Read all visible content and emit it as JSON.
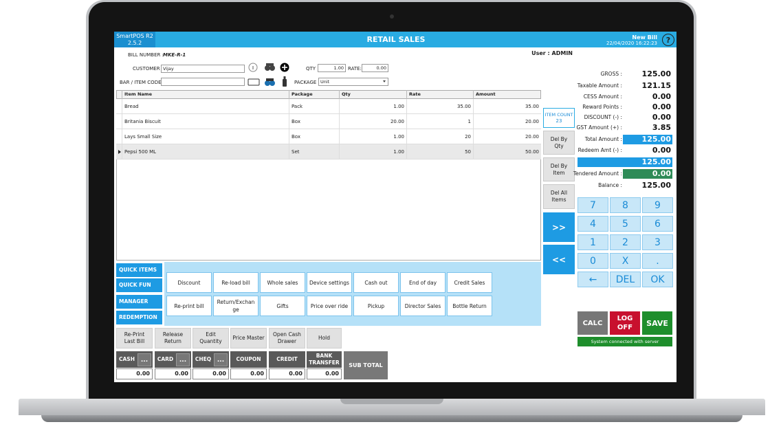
{
  "header": {
    "app_name": "SmartPOS R2",
    "version": "2.5.2",
    "title": "RETAIL SALES",
    "bill_status": "New Bill",
    "datetime": "22/04/2020 16:22:23",
    "help": "?"
  },
  "form": {
    "bill_number_label": "BILL NUMBER :",
    "bill_number": "MKE-R-1",
    "user": "User : ADMIN",
    "customer_label": "CUSTOMER :",
    "customer": "Vijay",
    "qty_label": "QTY :",
    "qty": "1.00",
    "rate_label": "RATE:",
    "rate": "0.00",
    "item_code_label": "BAR / ITEM CODE :",
    "package_label": "PACKAGE :",
    "package": "Unit"
  },
  "table": {
    "columns": [
      "Item Name",
      "Package",
      "Qty",
      "Rate",
      "Amount"
    ],
    "rows": [
      [
        "Bread",
        "Pack",
        "1.00",
        "35.00",
        "35.00"
      ],
      [
        "Britania Biscuit",
        "Box",
        "20.00",
        "1",
        "20.00"
      ],
      [
        "Lays Small Size",
        "Box",
        "1.00",
        "20",
        "20.00"
      ],
      [
        "Pepsi 500 ML",
        "Set",
        "1.00",
        "50",
        "50.00"
      ]
    ]
  },
  "side": {
    "item_count_label": "ITEM COUNT",
    "item_count": "23",
    "buttons": [
      "Del By Qty",
      "Del By Item",
      "Del All Items"
    ],
    "next": ">>",
    "prev": "<<"
  },
  "summary": [
    {
      "label": "GROSS :",
      "value": "125.00"
    },
    {
      "label": "Taxable Amount :",
      "value": "121.15"
    },
    {
      "label": "CESS Amount :",
      "value": "0.00"
    },
    {
      "label": "Reward Points :",
      "value": "0.00"
    },
    {
      "label": "DISCOUNT  (-) :",
      "value": "0.00"
    },
    {
      "label": "GST Amount (+) :",
      "value": "3.85"
    },
    {
      "label": "Total Amount :",
      "value": "125.00"
    },
    {
      "label": "Redeem Amt  (-) :",
      "value": "0.00"
    },
    {
      "value": "125.00"
    },
    {
      "label": "Tendered Amount :",
      "value": "0.00"
    },
    {
      "label": "Balance :",
      "value": "125.00"
    }
  ],
  "keypad": [
    "7",
    "8",
    "9",
    "4",
    "5",
    "6",
    "1",
    "2",
    "3",
    "0",
    "X",
    ".",
    "←",
    "DEL",
    "OK"
  ],
  "actions": {
    "calc": "CALC",
    "logoff": "LOG OFF",
    "save": "SAVE",
    "status": "System connected with server"
  },
  "tabs": [
    "QUICK ITEMS",
    "QUICK FUN",
    "MANAGER",
    "REDEMPTION"
  ],
  "quick_buttons": [
    "Discount",
    "Re-load bill",
    "Whole sales",
    "Device settings",
    "Cash out",
    "End of day",
    "Credit Sales",
    "Re-print bill",
    "Return/Exchange",
    "Gifts",
    "Price over ride",
    "Pickup",
    "Director Sales",
    "Bottle Return"
  ],
  "bottom_buttons": [
    "Re-Print Last Bill",
    "Release Return",
    "Edit Quantity",
    "Price Master",
    "Open Cash Drawer",
    "Hold"
  ],
  "payments": [
    {
      "label": "CASH",
      "more": "...",
      "amount": "0.00"
    },
    {
      "label": "CARD",
      "more": "...",
      "amount": "0.00"
    },
    {
      "label": "CHEQ",
      "more": "...",
      "amount": "0.00"
    },
    {
      "label": "COUPON",
      "amount": "0.00"
    },
    {
      "label": "CREDIT",
      "amount": "0.00"
    },
    {
      "label": "BANK TRANSFER",
      "amount": "0.00"
    }
  ],
  "subtotal": "SUB TOTAL"
}
